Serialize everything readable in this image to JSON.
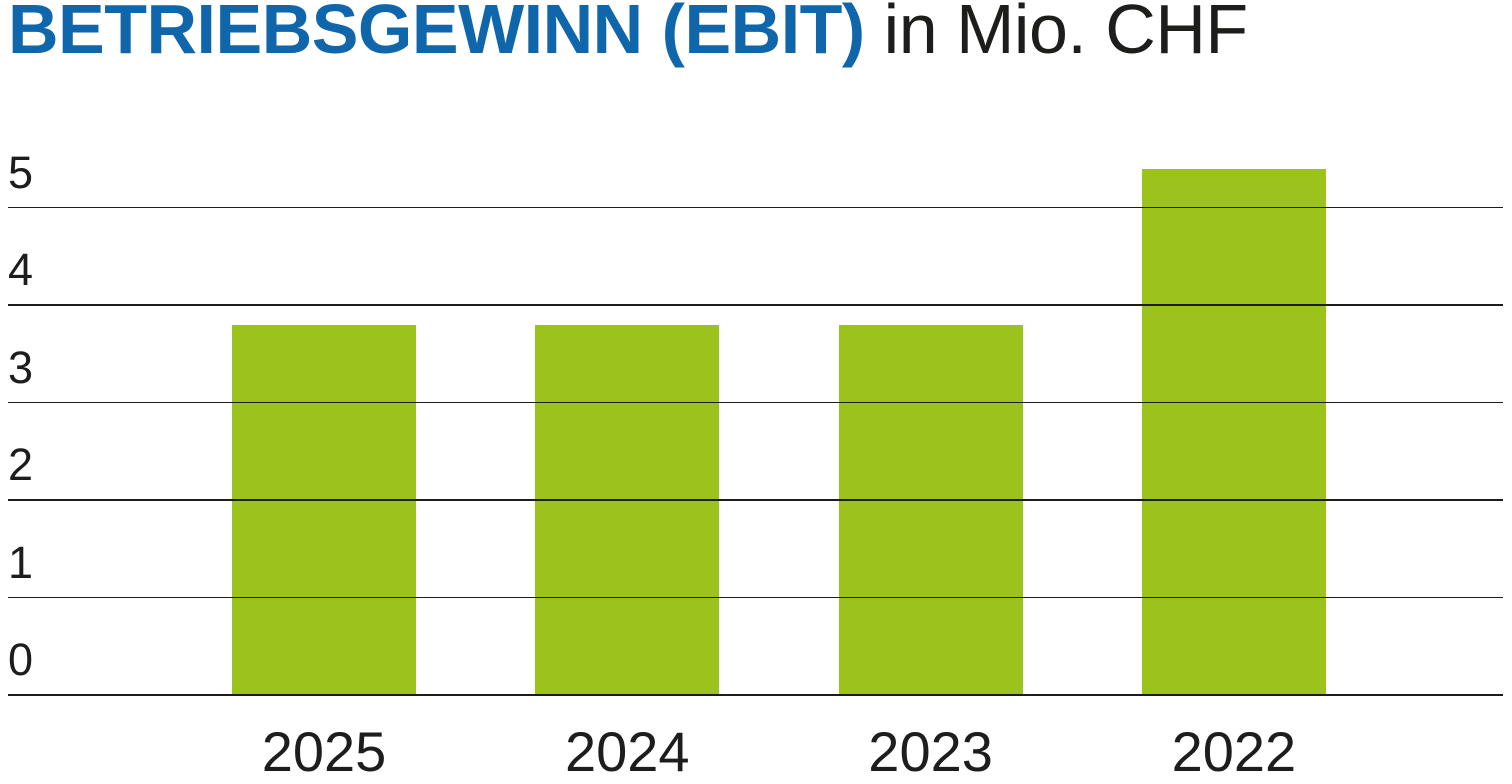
{
  "title": {
    "main": "BETRIEBSGEWINN (EBIT)",
    "unit": " in Mio. CHF"
  },
  "colors": {
    "accent_blue": "#1066ab",
    "bar_green": "#9bc31c",
    "grid_line": "#1d1d1b",
    "text": "#1d1d1b",
    "background": "#ffffff"
  },
  "chart_data": {
    "type": "bar",
    "title": "BETRIEBSGEWINN (EBIT) in Mio. CHF",
    "categories": [
      "2025",
      "2024",
      "2023",
      "2022"
    ],
    "values": [
      3.8,
      3.8,
      3.8,
      5.4
    ],
    "xlabel": "",
    "ylabel": "Mio. CHF",
    "ylim": [
      0,
      5.5
    ],
    "yticks": [
      5,
      4,
      3,
      2,
      1,
      0
    ],
    "grid": true,
    "legend": false,
    "bar_color": "#9bc31c"
  }
}
